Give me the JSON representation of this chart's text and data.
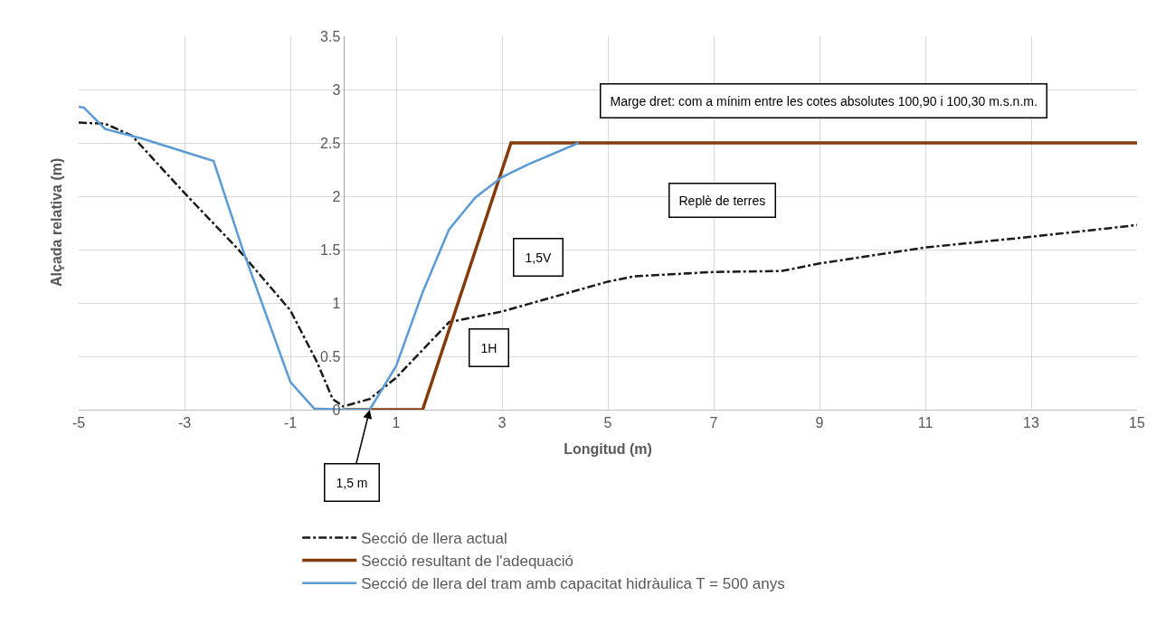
{
  "chart_data": {
    "type": "line",
    "xlabel": "Longitud (m)",
    "ylabel": "Alçada relativa (m)",
    "xlim": [
      -5,
      15
    ],
    "xticks": [
      -5,
      -3,
      -1,
      1,
      3,
      5,
      7,
      9,
      11,
      13,
      15
    ],
    "ylim": [
      0,
      3.5
    ],
    "yticks": [
      0,
      0.5,
      1,
      1.5,
      2,
      2.5,
      3,
      3.5
    ],
    "grid": true,
    "legend": "bottom",
    "marker": "none",
    "series": [
      {
        "name": "Secció de llera actual",
        "color": "#1a1a1a",
        "line_style": "dashdot",
        "x": [
          -5,
          -4.5,
          -4,
          -3,
          -2,
          -1,
          -0.5,
          -0.2,
          0,
          0.5,
          1,
          2,
          2.2,
          3,
          5,
          5.5,
          7,
          8.3,
          9,
          11,
          13,
          15
        ],
        "values": [
          2.69,
          2.68,
          2.57,
          2.03,
          1.51,
          0.93,
          0.45,
          0.1,
          0.03,
          0.1,
          0.3,
          0.82,
          0.84,
          0.92,
          1.2,
          1.25,
          1.29,
          1.3,
          1.37,
          1.52,
          1.62,
          1.73
        ]
      },
      {
        "name": "Secció resultant de l'adequació",
        "color": "#843c0c",
        "line_style": "solid",
        "x": [
          0,
          1.5,
          3.17,
          15
        ],
        "values": [
          0,
          0,
          2.5,
          2.5
        ]
      },
      {
        "name": "Secció de llera del tram amb capacitat hidràulica T = 500 anys",
        "color": "#5b9bd5",
        "line_style": "solid",
        "x": [
          -5,
          -4.9,
          -4.5,
          -3.8,
          -2.45,
          -1.9,
          -1,
          -0.55,
          0,
          0.5,
          1,
          1.5,
          2,
          2.5,
          3,
          3.5,
          4.45
        ],
        "values": [
          2.84,
          2.83,
          2.63,
          2.54,
          2.33,
          1.5,
          0.26,
          0.01,
          0,
          0,
          0.41,
          1.1,
          1.69,
          1.99,
          2.18,
          2.3,
          2.5
        ]
      }
    ],
    "annotations": [
      "Marge dret: com a mínim entre les cotes absolutes 100,90 i 100,30 m.s.n.m.",
      "Replè de terres",
      "1,5V",
      "1H",
      {
        "text": "1,5 m",
        "x": 0.5,
        "y": 0
      }
    ]
  }
}
